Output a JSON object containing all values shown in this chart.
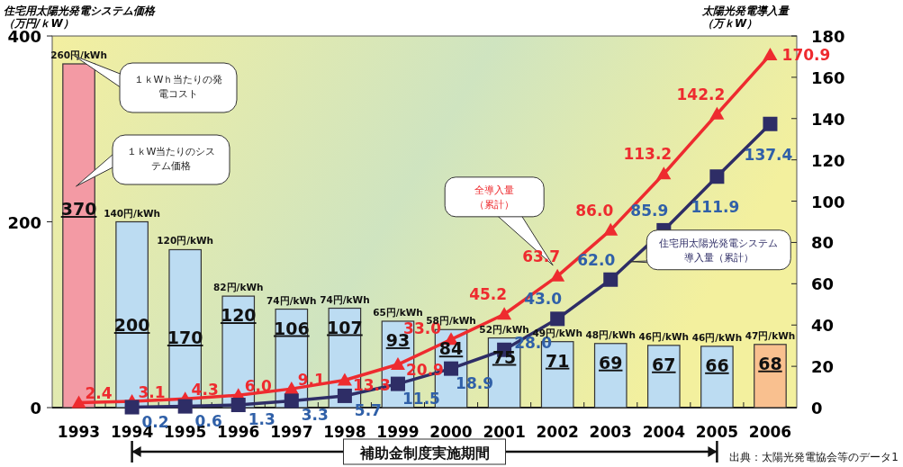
{
  "chart_data": {
    "type": "bar",
    "ylabel": "住宅用太陽光発電システム価格（万円/ｋW）",
    "y2label": "太陽光発電導入量（万ｋW）",
    "categories": [
      "1993",
      "1994",
      "1995",
      "1996",
      "1997",
      "1998",
      "1999",
      "2000",
      "2001",
      "2002",
      "2003",
      "2004",
      "2005",
      "2006"
    ],
    "series": [
      {
        "colors": [
          "#f39aa4",
          "#bcdcf2",
          "#bcdcf2",
          "#bcdcf2",
          "#bcdcf2",
          "#bcdcf2",
          "#bcdcf2",
          "#bcdcf2",
          "#bcdcf2",
          "#bcdcf2",
          "#bcdcf2",
          "#bcdcf2",
          "#bcdcf2",
          "#f9c08f"
        ],
        "values": [
          370,
          200,
          170,
          120,
          106,
          107,
          93,
          84,
          75,
          71,
          69,
          67,
          66,
          68
        ],
        "value_labels": [
          "370",
          "200",
          "170",
          "120",
          "106",
          "107",
          "93",
          "84",
          "75",
          "71",
          "69",
          "67",
          "66",
          "68"
        ]
      },
      {
        "type": "line",
        "name": "全導入量（累計）",
        "color": "#ee2b2f",
        "marker": "triangle",
        "axis": "y2",
        "values": [
          2.4,
          3.1,
          4.3,
          6.0,
          9.1,
          13.3,
          20.9,
          33.0,
          45.2,
          63.7,
          86.0,
          113.2,
          142.2,
          170.9
        ],
        "value_labels": [
          "2.4",
          "3.1",
          "4.3",
          "6.0",
          "9.1",
          "13.3",
          "20.9",
          "33.0",
          "45.2",
          "63.7",
          "86.0",
          "113.2",
          "142.2",
          "170.9"
        ]
      },
      {
        "type": "line",
        "name": "住宅用太陽光発電システム導入量（累計）",
        "color": "#2e2d66",
        "marker": "square",
        "axis": "y2",
        "values": [
          null,
          0.2,
          0.6,
          1.3,
          3.3,
          5.7,
          11.5,
          18.9,
          28.0,
          43.0,
          62.0,
          85.9,
          111.9,
          137.4
        ],
        "value_labels": [
          null,
          "0.2",
          "0.6",
          "1.3",
          "3.3",
          "5.7",
          "11.5",
          "18.9",
          "28.0",
          "43.0",
          "62.0",
          "85.9",
          "111.9",
          "137.4"
        ]
      }
    ],
    "ylim": [
      0,
      400
    ],
    "yticks": [
      0,
      200,
      400
    ],
    "y2lim": [
      0,
      180
    ],
    "y2ticks": [
      0,
      20,
      40,
      60,
      80,
      100,
      120,
      140,
      160,
      180
    ],
    "legend": false,
    "grid": false,
    "annotations": [
      {
        "text": "260円/kWh",
        "x": "1993",
        "y": 370
      },
      {
        "text": "140円/kWh",
        "x": "1994",
        "y": 200
      },
      {
        "text": "120円/kWh",
        "x": "1995",
        "y": 170
      },
      {
        "text": "82円/kWh",
        "x": "1996",
        "y": 120
      },
      {
        "text": "74円/kWh",
        "x": "1997",
        "y": 106
      },
      {
        "text": "74円/kWh",
        "x": "1998",
        "y": 107
      },
      {
        "text": "65円/kWh",
        "x": "1999",
        "y": 93
      },
      {
        "text": "58円/kWh",
        "x": "2000",
        "y": 84
      },
      {
        "text": "52円/kWh",
        "x": "2001",
        "y": 75
      },
      {
        "text": "49円/kWh",
        "x": "2002",
        "y": 71
      },
      {
        "text": "48円/kWh",
        "x": "2003",
        "y": 69
      },
      {
        "text": "46円/kWh",
        "x": "2004",
        "y": 67
      },
      {
        "text": "46円/kWh",
        "x": "2005",
        "y": 66
      },
      {
        "text": "47円/kWh",
        "x": "2006",
        "y": 68
      },
      "１ｋWｈ当たりの発電コスト",
      "１ｋW当たりのシステム価格",
      "補助金制度実施期間",
      "出典：太陽光発電協会等のデータ1"
    ]
  }
}
